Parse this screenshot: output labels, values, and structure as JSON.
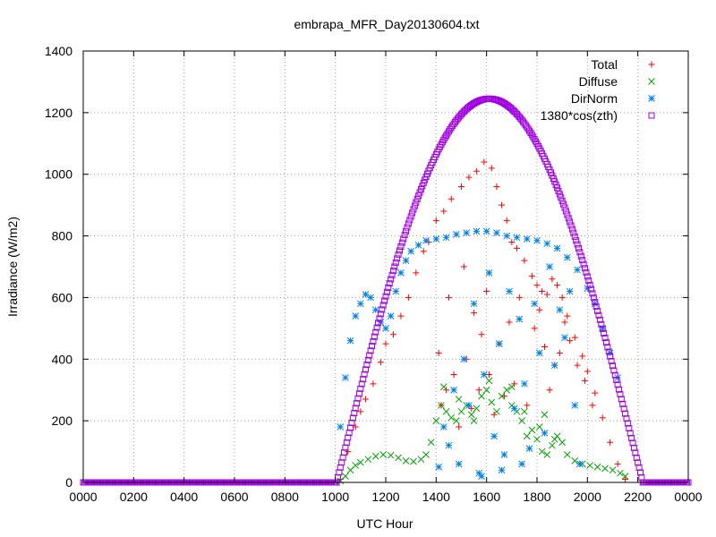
{
  "chart_data": {
    "type": "scatter",
    "title": "embrapa_MFR_Day20130604.txt",
    "xlabel": "UTC Hour",
    "ylabel": "Irradiance (W/m2)",
    "xlim": [
      0,
      24
    ],
    "ylim": [
      0,
      1400
    ],
    "grid": true,
    "legend_position": "top-right",
    "x_ticks": [
      {
        "value": 0,
        "label": "0000"
      },
      {
        "value": 2,
        "label": "0200"
      },
      {
        "value": 4,
        "label": "0400"
      },
      {
        "value": 6,
        "label": "0600"
      },
      {
        "value": 8,
        "label": "0800"
      },
      {
        "value": 10,
        "label": "1000"
      },
      {
        "value": 12,
        "label": "1200"
      },
      {
        "value": 14,
        "label": "1400"
      },
      {
        "value": 16,
        "label": "1600"
      },
      {
        "value": 18,
        "label": "1800"
      },
      {
        "value": 20,
        "label": "2000"
      },
      {
        "value": 22,
        "label": "2200"
      },
      {
        "value": 24,
        "label": "0000"
      }
    ],
    "y_ticks": [
      0,
      200,
      400,
      600,
      800,
      1000,
      1200,
      1400
    ],
    "series": [
      {
        "name": "Total",
        "color": "#ff0000",
        "marker": "plus",
        "points": [
          [
            10.2,
            10
          ],
          [
            10.5,
            100
          ],
          [
            10.8,
            180
          ],
          [
            11,
            230
          ],
          [
            11.2,
            270
          ],
          [
            11.5,
            320
          ],
          [
            11.8,
            390
          ],
          [
            12,
            450
          ],
          [
            12.3,
            480
          ],
          [
            12.6,
            540
          ],
          [
            12.9,
            600
          ],
          [
            13.2,
            680
          ],
          [
            13.5,
            750
          ],
          [
            13.7,
            780
          ],
          [
            14,
            850
          ],
          [
            14.3,
            880
          ],
          [
            14.6,
            920
          ],
          [
            15,
            960
          ],
          [
            15.3,
            990
          ],
          [
            15.6,
            1010
          ],
          [
            15.9,
            1040
          ],
          [
            16.2,
            1020
          ],
          [
            16.4,
            960
          ],
          [
            16.6,
            900
          ],
          [
            16.8,
            850
          ],
          [
            17,
            780
          ],
          [
            17.2,
            760
          ],
          [
            17.5,
            720
          ],
          [
            17.8,
            670
          ],
          [
            18,
            640
          ],
          [
            18.2,
            620
          ],
          [
            18.4,
            610
          ],
          [
            18.6,
            660
          ],
          [
            18.8,
            640
          ],
          [
            19,
            600
          ],
          [
            19.2,
            540
          ],
          [
            19.5,
            470
          ],
          [
            19.8,
            410
          ],
          [
            20,
            360
          ],
          [
            20.3,
            290
          ],
          [
            20.6,
            210
          ],
          [
            20.9,
            130
          ],
          [
            21.2,
            60
          ],
          [
            21.5,
            10
          ],
          [
            14.1,
            420
          ],
          [
            14.2,
            250
          ],
          [
            14.4,
            300
          ],
          [
            14.5,
            600
          ],
          [
            14.7,
            350
          ],
          [
            14.9,
            180
          ],
          [
            15.1,
            700
          ],
          [
            15.2,
            400
          ],
          [
            15.4,
            240
          ],
          [
            15.5,
            550
          ],
          [
            15.7,
            300
          ],
          [
            15.8,
            480
          ],
          [
            16,
            620
          ],
          [
            16.1,
            350
          ],
          [
            16.3,
            220
          ],
          [
            16.5,
            450
          ],
          [
            16.7,
            280
          ],
          [
            16.9,
            520
          ],
          [
            17.1,
            320
          ],
          [
            17.3,
            600
          ],
          [
            17.6,
            250
          ],
          [
            17.9,
            500
          ],
          [
            18.1,
            560
          ],
          [
            18.3,
            440
          ],
          [
            18.5,
            300
          ],
          [
            18.7,
            380
          ],
          [
            18.9,
            420
          ],
          [
            19.1,
            520
          ],
          [
            19.3,
            460
          ],
          [
            19.6,
            380
          ],
          [
            19.9,
            330
          ],
          [
            20.2,
            250
          ]
        ]
      },
      {
        "name": "Diffuse",
        "color": "#00a000",
        "marker": "x",
        "points": [
          [
            10.2,
            5
          ],
          [
            10.4,
            20
          ],
          [
            10.6,
            40
          ],
          [
            10.8,
            55
          ],
          [
            11,
            65
          ],
          [
            11.3,
            75
          ],
          [
            11.6,
            85
          ],
          [
            11.9,
            90
          ],
          [
            12.2,
            88
          ],
          [
            12.5,
            80
          ],
          [
            12.8,
            70
          ],
          [
            13.1,
            68
          ],
          [
            13.4,
            75
          ],
          [
            13.6,
            90
          ],
          [
            13.8,
            130
          ],
          [
            14,
            200
          ],
          [
            14.2,
            250
          ],
          [
            14.4,
            230
          ],
          [
            14.6,
            210
          ],
          [
            14.8,
            200
          ],
          [
            15,
            230
          ],
          [
            15.2,
            250
          ],
          [
            15.4,
            220
          ],
          [
            15.6,
            240
          ],
          [
            15.8,
            280
          ],
          [
            16,
            300
          ],
          [
            16.2,
            260
          ],
          [
            16.4,
            230
          ],
          [
            16.6,
            280
          ],
          [
            16.8,
            300
          ],
          [
            17,
            250
          ],
          [
            17.2,
            230
          ],
          [
            17.4,
            200
          ],
          [
            17.6,
            150
          ],
          [
            17.8,
            170
          ],
          [
            18,
            140
          ],
          [
            18.2,
            100
          ],
          [
            18.4,
            90
          ],
          [
            18.6,
            120
          ],
          [
            18.8,
            150
          ],
          [
            19,
            130
          ],
          [
            19.2,
            90
          ],
          [
            19.5,
            70
          ],
          [
            19.8,
            60
          ],
          [
            20.1,
            55
          ],
          [
            20.4,
            50
          ],
          [
            20.7,
            45
          ],
          [
            21,
            40
          ],
          [
            21.3,
            30
          ],
          [
            21.5,
            20
          ],
          [
            14.3,
            310
          ],
          [
            14.9,
            270
          ],
          [
            15.5,
            200
          ],
          [
            16.1,
            330
          ],
          [
            16.5,
            450
          ],
          [
            17,
            310
          ],
          [
            17.5,
            230
          ],
          [
            18.1,
            180
          ],
          [
            18.3,
            220
          ],
          [
            18.7,
            140
          ]
        ]
      },
      {
        "name": "DirNorm",
        "color": "#0080e0",
        "marker": "star",
        "points": [
          [
            10.2,
            180
          ],
          [
            10.4,
            340
          ],
          [
            10.6,
            460
          ],
          [
            10.8,
            540
          ],
          [
            11,
            580
          ],
          [
            11.2,
            610
          ],
          [
            11.4,
            600
          ],
          [
            11.6,
            560
          ],
          [
            11.8,
            520
          ],
          [
            12,
            500
          ],
          [
            12.2,
            540
          ],
          [
            12.4,
            620
          ],
          [
            12.6,
            680
          ],
          [
            12.8,
            720
          ],
          [
            13,
            750
          ],
          [
            13.3,
            770
          ],
          [
            13.6,
            785
          ],
          [
            14,
            790
          ],
          [
            14.4,
            795
          ],
          [
            14.8,
            805
          ],
          [
            15.2,
            810
          ],
          [
            15.6,
            815
          ],
          [
            16,
            815
          ],
          [
            16.4,
            810
          ],
          [
            16.8,
            800
          ],
          [
            17.2,
            795
          ],
          [
            17.6,
            790
          ],
          [
            18,
            785
          ],
          [
            18.4,
            775
          ],
          [
            18.8,
            760
          ],
          [
            19.2,
            730
          ],
          [
            19.6,
            690
          ],
          [
            20,
            630
          ],
          [
            20.3,
            580
          ],
          [
            20.6,
            500
          ],
          [
            20.9,
            420
          ],
          [
            21.2,
            340
          ],
          [
            14.1,
            50
          ],
          [
            14.3,
            180
          ],
          [
            14.5,
            120
          ],
          [
            14.7,
            300
          ],
          [
            14.9,
            60
          ],
          [
            15.1,
            400
          ],
          [
            15.3,
            250
          ],
          [
            15.5,
            580
          ],
          [
            15.7,
            30
          ],
          [
            15.9,
            350
          ],
          [
            16.1,
            680
          ],
          [
            16.3,
            150
          ],
          [
            16.5,
            450
          ],
          [
            16.7,
            90
          ],
          [
            16.9,
            620
          ],
          [
            17.1,
            240
          ],
          [
            17.3,
            530
          ],
          [
            17.5,
            320
          ],
          [
            17.7,
            110
          ],
          [
            17.9,
            580
          ],
          [
            18.1,
            420
          ],
          [
            18.3,
            160
          ],
          [
            18.5,
            700
          ],
          [
            18.7,
            380
          ],
          [
            18.9,
            560
          ],
          [
            19.1,
            470
          ],
          [
            19.3,
            620
          ],
          [
            19.5,
            250
          ],
          [
            19.7,
            60
          ],
          [
            15.8,
            20
          ],
          [
            16.6,
            40
          ],
          [
            17.4,
            60
          ]
        ]
      },
      {
        "name": "1380*cos(zth)",
        "color": "#a000e0",
        "marker": "square",
        "curve": {
          "peak": 1245,
          "peak_hour": 16.1,
          "start_hour": 10.05,
          "end_hour": 22.2
        }
      }
    ]
  }
}
